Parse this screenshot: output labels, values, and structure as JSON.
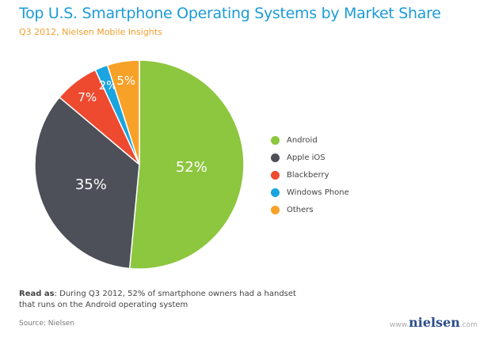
{
  "chart_data": {
    "type": "pie",
    "title": "Top U.S. Smartphone Operating Systems by Market Share",
    "subtitle": "Q3 2012, Nielsen Mobile Insights",
    "categories": [
      "Android",
      "Apple iOS",
      "Blackberry",
      "Windows Phone",
      "Others"
    ],
    "values": [
      52,
      35,
      7,
      2,
      5
    ],
    "labels": [
      "52%",
      "35%",
      "7%",
      "2%",
      "5%"
    ],
    "colors": [
      "#8dc63f",
      "#4d5059",
      "#ee4a30",
      "#1aa4e0",
      "#f7a128"
    ],
    "legend_position": "right"
  },
  "note": {
    "lead": "Read as",
    "text": ": During Q3 2012, 52% of smartphone owners had a handset that runs on the Android operating system"
  },
  "source": "Source: Nielsen",
  "logo": {
    "prefix": "www.",
    "brand": "nielsen",
    "suffix": ".com"
  }
}
